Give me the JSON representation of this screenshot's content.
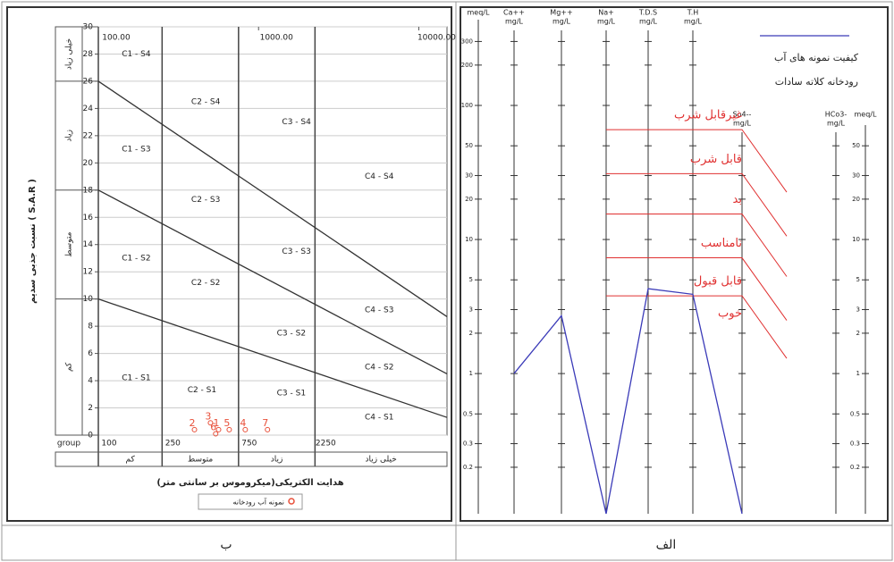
{
  "chart_data": [
    {
      "type": "scatter",
      "caption": "ب",
      "xlabel": "هدایت الکتریکی(میکروموس بر سانتی متر)",
      "ylabel": "نسبت جذبی سدیم ( S.A.R )",
      "xscale": "log",
      "xlim": [
        100,
        15000
      ],
      "xticks": [
        100,
        250,
        750,
        2250
      ],
      "x2ticks": [
        {
          "value": 100,
          "label": "100.00"
        },
        {
          "value": 1000,
          "label": "1000.00"
        },
        {
          "value": 10000,
          "label": "10000.00"
        }
      ],
      "ylim": [
        0,
        30
      ],
      "yticks": [
        0,
        2,
        4,
        6,
        8,
        10,
        12,
        14,
        16,
        18,
        20,
        22,
        24,
        26,
        28,
        30
      ],
      "grid": true,
      "x_classes_title": "group",
      "x_classes": [
        "کم",
        "متوسط",
        "زیاد",
        "خیلی زیاد"
      ],
      "y_classes": [
        "کم",
        "متوسط",
        "زیاد",
        "خیلی زیاد"
      ],
      "y_class_bounds": [
        0,
        10,
        18,
        26,
        30
      ],
      "boundaries": [
        {
          "x": [
            100,
            15000
          ],
          "y": [
            10,
            1.3
          ]
        },
        {
          "x": [
            100,
            15000
          ],
          "y": [
            18,
            4.5
          ]
        },
        {
          "x": [
            100,
            15000
          ],
          "y": [
            26,
            8.7
          ]
        }
      ],
      "zones": [
        {
          "label": "C1 - S4",
          "x": 140,
          "y": 28
        },
        {
          "label": "C2 - S4",
          "x": 380,
          "y": 24.5
        },
        {
          "label": "C3 - S4",
          "x": 1400,
          "y": 23
        },
        {
          "label": "C4 - S4",
          "x": 4600,
          "y": 19
        },
        {
          "label": "C1 - S3",
          "x": 140,
          "y": 21
        },
        {
          "label": "C2 - S3",
          "x": 380,
          "y": 17.3
        },
        {
          "label": "C3 - S3",
          "x": 1400,
          "y": 13.5
        },
        {
          "label": "C4 - S3",
          "x": 4600,
          "y": 9.2
        },
        {
          "label": "C1 - S2",
          "x": 140,
          "y": 13
        },
        {
          "label": "C2 - S2",
          "x": 380,
          "y": 11.2
        },
        {
          "label": "C3 - S2",
          "x": 1300,
          "y": 7.5
        },
        {
          "label": "C4 - S2",
          "x": 4600,
          "y": 5
        },
        {
          "label": "C1 - S1",
          "x": 140,
          "y": 4.2
        },
        {
          "label": "C2 - S1",
          "x": 360,
          "y": 3.3
        },
        {
          "label": "C3 - S1",
          "x": 1300,
          "y": 3.1
        },
        {
          "label": "C4 - S1",
          "x": 4600,
          "y": 1.3
        }
      ],
      "series": [
        {
          "name": "نمونه آب رودخانه",
          "color": "#e8503a",
          "x": [
            563,
            398,
            501,
            826,
            656,
            540,
            1137
          ],
          "y": [
            0.4,
            0.4,
            0.9,
            0.4,
            0.4,
            0.1,
            0.4
          ],
          "point_labels": [
            "1",
            "2",
            "3",
            "4",
            "5",
            "6",
            "7"
          ]
        }
      ]
    },
    {
      "type": "line",
      "caption": "الف",
      "title": [
        "کیفیت نمونه های آب",
        "رودخانه کلاته سادات"
      ],
      "axis_unit": "meq/L",
      "column_unit": "mg/L",
      "categories": [
        "Ca++",
        "Mg++",
        "Na+",
        "T.D.S",
        "T.H",
        "So4--",
        "HCo3-"
      ],
      "yscale": "log",
      "ylim": [
        0.09,
        450
      ],
      "yticks": [
        300,
        200,
        100,
        50,
        30,
        20,
        10,
        5,
        3,
        2,
        1,
        0.5,
        0.3,
        0.2
      ],
      "zones": [
        {
          "label": "غیرقابل شرب",
          "value": 66
        },
        {
          "label": "قابل شرب",
          "value": 31
        },
        {
          "label": "بد",
          "value": 15.5
        },
        {
          "label": "نامناسب",
          "value": 7.3
        },
        {
          "label": "قابل قبول",
          "value": 3.8
        },
        {
          "label": "خوب"
        }
      ],
      "zone_color": "#e03030",
      "series": [
        {
          "color": "#3a3ab8",
          "values": [
            1.0,
            2.7,
            0.09,
            4.3,
            3.9,
            0.09,
            null
          ]
        }
      ]
    }
  ]
}
